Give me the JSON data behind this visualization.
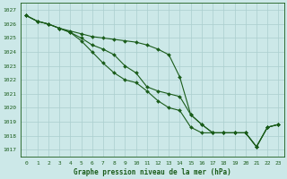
{
  "xlabel": "Graphe pression niveau de la mer (hPa)",
  "xlim": [
    -0.5,
    23.5
  ],
  "ylim": [
    1016.5,
    1027.5
  ],
  "yticks": [
    1017,
    1018,
    1019,
    1020,
    1021,
    1022,
    1023,
    1024,
    1025,
    1026,
    1027
  ],
  "xticks": [
    0,
    1,
    2,
    3,
    4,
    5,
    6,
    7,
    8,
    9,
    10,
    11,
    12,
    13,
    14,
    15,
    16,
    17,
    18,
    19,
    20,
    21,
    22,
    23
  ],
  "background_color": "#cce8e8",
  "grid_color": "#aacece",
  "line_color": "#1a5c1a",
  "line1": [
    1026.6,
    1026.2,
    1026.0,
    1025.7,
    1025.5,
    1025.3,
    1025.1,
    1025.0,
    1024.9,
    1024.8,
    1024.7,
    1024.5,
    1024.2,
    1023.8,
    1022.2,
    1019.5,
    1018.8,
    1018.2,
    1018.2,
    1018.2,
    1018.2,
    1017.2,
    1018.6,
    1018.8
  ],
  "line2": [
    1026.6,
    1026.2,
    1026.0,
    1025.7,
    1025.4,
    1025.0,
    1024.5,
    1024.2,
    1023.8,
    1023.0,
    1022.5,
    1021.5,
    1021.2,
    1021.0,
    1020.8,
    1019.5,
    1018.8,
    1018.2,
    1018.2,
    1018.2,
    1018.2,
    1017.2,
    1018.6,
    1018.8
  ],
  "line3": [
    1026.6,
    1026.2,
    1026.0,
    1025.7,
    1025.4,
    1024.8,
    1024.0,
    1023.2,
    1022.5,
    1022.0,
    1021.8,
    1021.2,
    1020.5,
    1020.0,
    1019.8,
    1018.6,
    1018.2,
    1018.2,
    1018.2,
    1018.2,
    1018.2,
    1017.2,
    1018.6,
    1018.8
  ]
}
